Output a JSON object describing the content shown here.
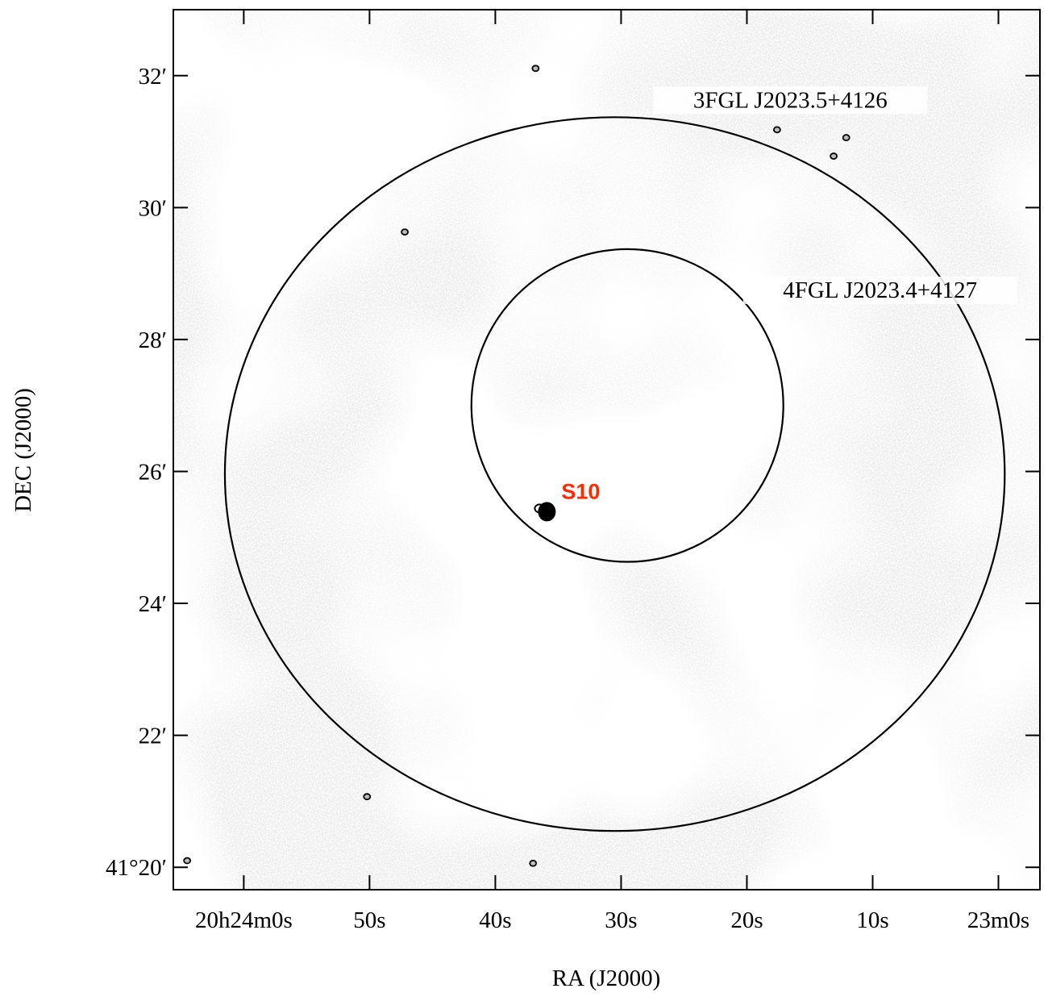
{
  "chart_data": {
    "type": "skymap",
    "xlabel": "RA (J2000)",
    "ylabel": "DEC (J2000)",
    "xlim": [
      65.6,
      -3.3
    ],
    "ylim": [
      19.66,
      33.0
    ],
    "xticks": [
      {
        "value": 60,
        "label": "20h24m0s"
      },
      {
        "value": 50,
        "label": "50s"
      },
      {
        "value": 40,
        "label": "40s"
      },
      {
        "value": 30,
        "label": "30s"
      },
      {
        "value": 20,
        "label": "20s"
      },
      {
        "value": 10,
        "label": "10s"
      },
      {
        "value": 0,
        "label": "23m0s"
      }
    ],
    "yticks": [
      {
        "value": 20,
        "label": "41°20′"
      },
      {
        "value": 22,
        "label": "22′"
      },
      {
        "value": 24,
        "label": "24′"
      },
      {
        "value": 26,
        "label": "26′"
      },
      {
        "value": 28,
        "label": "28′"
      },
      {
        "value": 30,
        "label": "30′"
      },
      {
        "value": 32,
        "label": "32′"
      }
    ],
    "regions": [
      {
        "name": "3FGL J2023.5+4126",
        "ra": 30.5,
        "dec": 25.96,
        "ra_radius": 31.0,
        "dec_radius": 5.41
      },
      {
        "name": "4FGL J2023.4+4127",
        "ra": 29.5,
        "dec": 27.0,
        "ra_radius": 12.4,
        "dec_radius": 2.37
      }
    ],
    "source": {
      "name": "S10",
      "ra": 35.9,
      "dec": 25.39,
      "color": "#ff2a00"
    },
    "contours": [
      {
        "ra": 36.8,
        "dec": 32.11
      },
      {
        "ra": 17.6,
        "dec": 31.18
      },
      {
        "ra": 47.2,
        "dec": 29.63
      },
      {
        "ra": 50.2,
        "dec": 21.07
      },
      {
        "ra": 37.0,
        "dec": 20.06
      },
      {
        "ra": 64.5,
        "dec": 20.1
      },
      {
        "ra": 12.1,
        "dec": 31.06
      },
      {
        "ra": 13.1,
        "dec": 30.78
      }
    ]
  }
}
